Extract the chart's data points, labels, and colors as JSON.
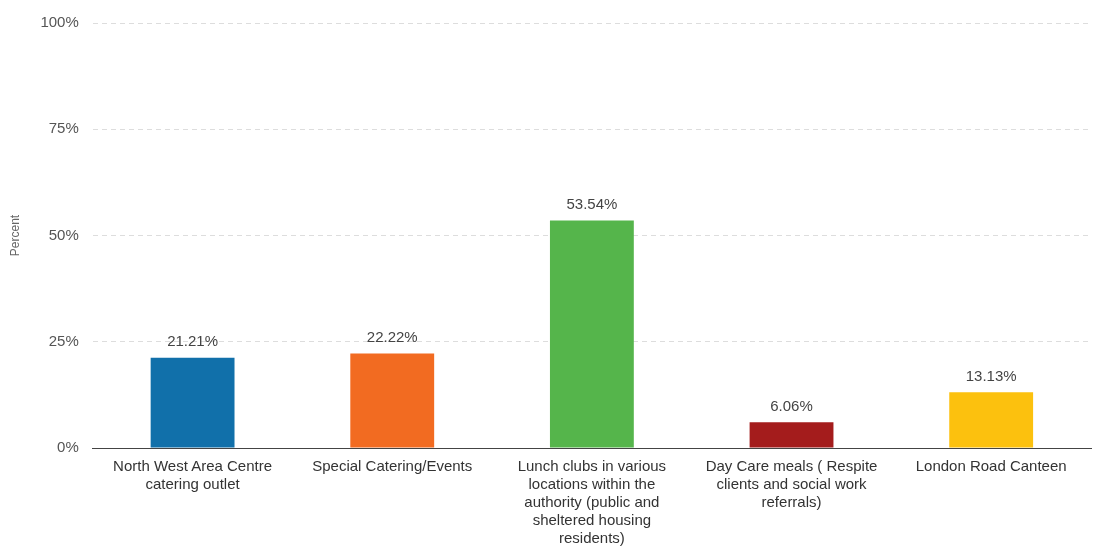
{
  "chart_data": {
    "type": "bar",
    "ylabel": "Percent",
    "categories": [
      "North West Area Centre catering outlet",
      "Special Catering/Events",
      "Lunch clubs in various locations within the authority (public and sheltered housing residents)",
      "Day Care meals ( Respite clients and social work referrals)",
      "London Road Canteen"
    ],
    "values": [
      21.21,
      22.22,
      53.54,
      6.06,
      13.13
    ],
    "colors": [
      "#1170aa",
      "#f26b21",
      "#55b54b",
      "#a41c1c",
      "#fcc10e"
    ],
    "value_labels": [
      "21.21%",
      "22.22%",
      "53.54%",
      "6.06%",
      "13.13%"
    ],
    "ylim": [
      0,
      100
    ],
    "yticks": [
      {
        "value": 0,
        "label": "0%"
      },
      {
        "value": 25,
        "label": "25%"
      },
      {
        "value": 50,
        "label": "50%"
      },
      {
        "value": 75,
        "label": "75%"
      },
      {
        "value": 100,
        "label": "100%"
      }
    ],
    "grid": "y",
    "legend": false
  }
}
